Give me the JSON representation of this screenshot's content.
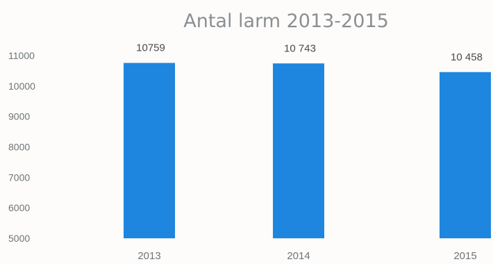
{
  "chart_data": {
    "type": "bar",
    "title": "Antal larm 2013-2015",
    "categories": [
      "2013",
      "2014",
      "2015"
    ],
    "values": [
      10759,
      10743,
      10458
    ],
    "data_labels": [
      "10759",
      "10 743",
      "10 458"
    ],
    "yticks": [
      "11000",
      "10000",
      "9000",
      "8000",
      "7000",
      "6000",
      "5000"
    ],
    "ytick_values": [
      11000,
      10000,
      9000,
      8000,
      7000,
      6000,
      5000
    ],
    "ylim": [
      5000,
      11000
    ],
    "xlabel": "",
    "ylabel": "",
    "grid": false,
    "legend": "none",
    "colors": {
      "bar": "#1f86df",
      "text": "#4a4a4a",
      "tick": "#6f7378",
      "title": "#8a8f94"
    }
  }
}
